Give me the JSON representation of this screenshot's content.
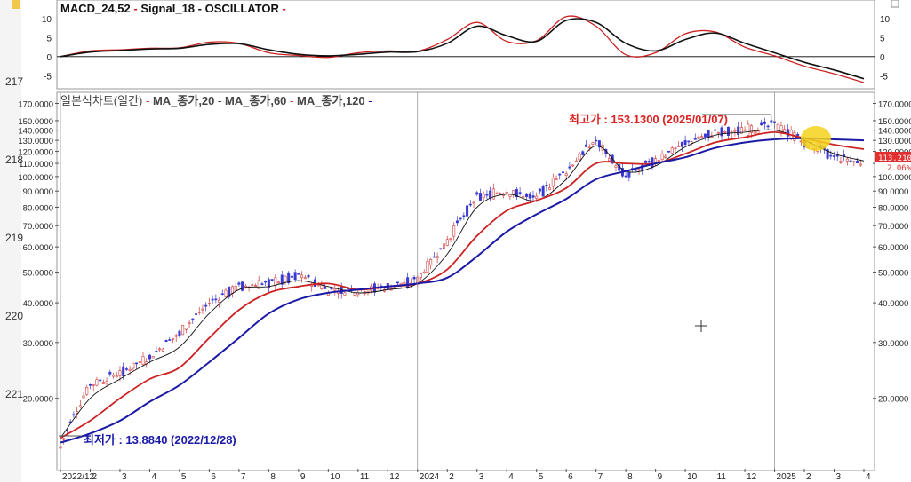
{
  "oscillator_panel": {
    "legend": [
      {
        "text": "MACD_24,52",
        "color": "#cc2222"
      },
      {
        "text": "Signal_18",
        "color": "#111111"
      },
      {
        "text": "OSCILLATOR",
        "color": "#cc2222"
      }
    ],
    "y_ticks": [
      10,
      5,
      0,
      -5
    ],
    "ylim": [
      -7.5,
      13
    ]
  },
  "price_panel": {
    "legend": [
      {
        "text": "일본식차트(일간)",
        "color": "#cc2222"
      },
      {
        "text": "MA_종가,20",
        "color": "#111111"
      },
      {
        "text": "MA_종가,60",
        "color": "#cc2222"
      },
      {
        "text": "MA_종가,120",
        "color": "#1a1aa6"
      }
    ],
    "y_ticks": [
      "170.0000",
      "150.0000",
      "140.0000",
      "130.0000",
      "120.0000",
      "110.0000",
      "100.0000",
      "90.0000",
      "80.0000",
      "70.0000",
      "60.0000",
      "50.0000",
      "40.0000",
      "30.0000",
      "20.0000"
    ],
    "y_tick_values": [
      170,
      150,
      140,
      130,
      120,
      110,
      100,
      90,
      80,
      70,
      60,
      50,
      40,
      30,
      20
    ],
    "high_label": "최고가 : 153.1300 (2025/01/07)",
    "low_label": "최저가 : 13.8840 (2022/12/28)",
    "last_price_tag": "113.2100",
    "last_change_tag": "2.06%"
  },
  "left_axis_labels": [
    "217",
    "218",
    "219",
    "220",
    "221"
  ],
  "x_axis_labels": [
    "2022/12",
    "2",
    "3",
    "4",
    "5",
    "6",
    "7",
    "8",
    "9",
    "10",
    "11",
    "12",
    "2024",
    "2",
    "3",
    "4",
    "5",
    "6",
    "7",
    "8",
    "9",
    "10",
    "11",
    "12",
    "2025",
    "2",
    "3",
    "4"
  ],
  "colors": {
    "up_candle": "#d23a3a",
    "down_candle": "#3a3ad2",
    "ma20": "#111111",
    "ma60": "#cc2222",
    "ma120": "#1a1aa6",
    "highlight": "#f5d21a"
  },
  "chart_data": {
    "type": "line",
    "title": "일본식차트(일간)",
    "x": [
      "2022/12",
      "2023/02",
      "2023/03",
      "2023/04",
      "2023/05",
      "2023/06",
      "2023/07",
      "2023/08",
      "2023/09",
      "2023/10",
      "2023/11",
      "2023/12",
      "2024/01",
      "2024/02",
      "2024/03",
      "2024/04",
      "2024/05",
      "2024/06",
      "2024/07",
      "2024/08",
      "2024/09",
      "2024/10",
      "2024/11",
      "2024/12",
      "2025/01",
      "2025/02",
      "2025/03",
      "2025/04"
    ],
    "yscale": "log",
    "ylim": [
      12,
      175
    ],
    "series": [
      {
        "name": "일본식차트(일간)",
        "values": [
          14,
          22,
          24,
          27,
          32,
          40,
          45,
          46,
          49,
          44,
          44,
          45,
          47,
          62,
          86,
          90,
          86,
          104,
          130,
          100,
          112,
          128,
          138,
          140,
          145,
          128,
          115,
          110
        ]
      },
      {
        "name": "MA_종가,20",
        "values": [
          15,
          20,
          23,
          26,
          29,
          37,
          44,
          45,
          47,
          45,
          43,
          44,
          46,
          57,
          80,
          88,
          84,
          98,
          125,
          104,
          108,
          124,
          135,
          138,
          140,
          130,
          118,
          112
        ]
      },
      {
        "name": "MA_종가,60",
        "values": [
          15,
          17,
          20,
          23,
          25,
          31,
          38,
          43,
          45,
          46,
          44,
          45,
          46,
          51,
          65,
          78,
          84,
          92,
          110,
          110,
          110,
          118,
          128,
          133,
          138,
          132,
          126,
          122
        ]
      },
      {
        "name": "MA_종가,120",
        "values": [
          14.5,
          15.5,
          17,
          19.5,
          22,
          26,
          31,
          37,
          41,
          43,
          44,
          45,
          46,
          48,
          56,
          67,
          76,
          85,
          98,
          104,
          110,
          115,
          123,
          128,
          131,
          132,
          131,
          130
        ]
      }
    ],
    "oscillator": {
      "series": [
        {
          "name": "MACD_24,52",
          "values": [
            0,
            1.5,
            1.8,
            2.2,
            2.3,
            3.8,
            3.5,
            1.0,
            0.3,
            -0.2,
            1.0,
            1.5,
            1.4,
            4.5,
            9.0,
            4.0,
            4.2,
            10.5,
            8.0,
            0.5,
            1.0,
            6.0,
            6.5,
            2.5,
            0.2,
            -2.5,
            -4.5,
            -6.8
          ]
        },
        {
          "name": "Signal_18",
          "values": [
            0,
            1.2,
            1.6,
            2.0,
            2.2,
            3.2,
            3.4,
            1.8,
            0.6,
            0.2,
            0.6,
            1.2,
            1.3,
            3.5,
            8.0,
            5.5,
            4.0,
            9.5,
            9.0,
            3.5,
            1.5,
            4.5,
            6.2,
            3.5,
            1.0,
            -1.5,
            -3.5,
            -5.8
          ]
        }
      ],
      "ylim": [
        -7.5,
        13
      ]
    }
  }
}
